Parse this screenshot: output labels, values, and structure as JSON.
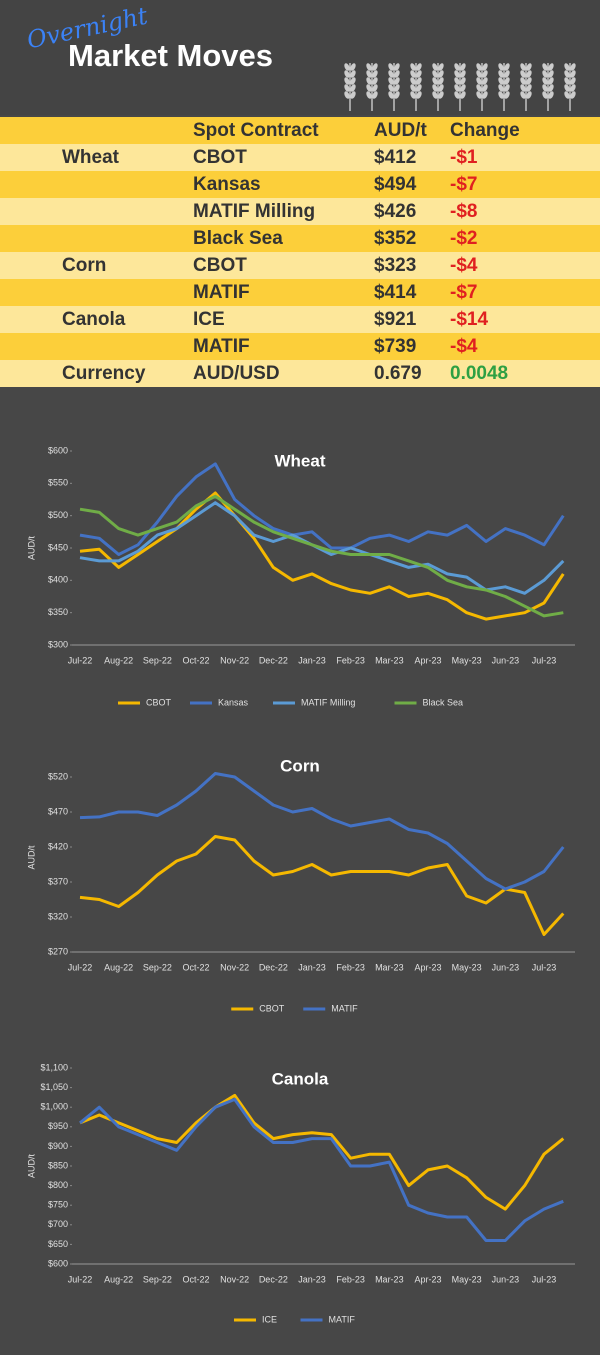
{
  "header": {
    "tag": "Overnight",
    "title": "Market Moves"
  },
  "table": {
    "header": {
      "contract": "Spot Contract",
      "price": "AUD/t",
      "change": "Change"
    },
    "rows": [
      {
        "group": "Wheat",
        "contract": "CBOT",
        "price": "$412",
        "change": "-$1"
      },
      {
        "contract": "Kansas",
        "price": "$494",
        "change": "-$7"
      },
      {
        "contract": "MATIF Milling",
        "price": "$426",
        "change": "-$8"
      },
      {
        "contract": "Black Sea",
        "price": "$352",
        "change": "-$2"
      },
      {
        "group": "Corn",
        "contract": "CBOT",
        "price": "$323",
        "change": "-$4"
      },
      {
        "contract": "MATIF",
        "price": "$414",
        "change": "-$7"
      },
      {
        "group": "Canola",
        "contract": "ICE",
        "price": "$921",
        "change": "-$14"
      },
      {
        "contract": "MATIF",
        "price": "$739",
        "change": "-$4"
      },
      {
        "group": "Currency",
        "contract": "AUD/USD",
        "price": "0.679",
        "change": "0.0048"
      }
    ]
  },
  "chart_data": [
    {
      "type": "line",
      "title": "Wheat",
      "y_label": "AUD/t",
      "grid": false,
      "categories": [
        "Jul-22",
        null,
        "Aug-22",
        null,
        "Sep-22",
        null,
        "Oct-22",
        null,
        "Nov-22",
        null,
        "Dec-22",
        null,
        "Jan-23",
        null,
        "Feb-23",
        null,
        "Mar-23",
        null,
        "Apr-23",
        null,
        "May-23",
        null,
        "Jun-23",
        null,
        "Jul-23",
        null
      ],
      "ylim": [
        300,
        600
      ],
      "yticks": [
        {
          "value": 300,
          "label": "$300"
        },
        {
          "value": 350,
          "label": "$350"
        },
        {
          "value": 400,
          "label": "$400"
        },
        {
          "value": 450,
          "label": "$450"
        },
        {
          "value": 500,
          "label": "$500"
        },
        {
          "value": 550,
          "label": "$550"
        },
        {
          "value": 600,
          "label": "$600"
        }
      ],
      "series": [
        {
          "name": "CBOT",
          "color": "#f5b800",
          "values": [
            445,
            448,
            420,
            440,
            460,
            480,
            510,
            535,
            500,
            465,
            420,
            400,
            410,
            395,
            385,
            380,
            390,
            375,
            380,
            370,
            350,
            340,
            345,
            350,
            365,
            410
          ]
        },
        {
          "name": "Kansas",
          "color": "#4472c4",
          "values": [
            470,
            465,
            440,
            455,
            490,
            530,
            560,
            580,
            525,
            500,
            480,
            470,
            475,
            450,
            450,
            465,
            470,
            460,
            475,
            470,
            485,
            460,
            480,
            470,
            455,
            500
          ]
        },
        {
          "name": "MATIF Milling",
          "color": "#5b9bd5",
          "values": [
            435,
            430,
            430,
            445,
            470,
            480,
            500,
            520,
            500,
            470,
            460,
            470,
            455,
            440,
            450,
            440,
            430,
            420,
            425,
            410,
            405,
            385,
            390,
            380,
            400,
            430
          ]
        },
        {
          "name": "Black Sea",
          "color": "#70ad47",
          "values": [
            510,
            505,
            480,
            470,
            480,
            490,
            515,
            530,
            510,
            490,
            475,
            465,
            455,
            445,
            440,
            440,
            440,
            430,
            420,
            400,
            390,
            385,
            375,
            360,
            345,
            350
          ]
        }
      ]
    },
    {
      "type": "line",
      "title": "Corn",
      "y_label": "AUD/t",
      "grid": false,
      "categories": [
        "Jul-22",
        null,
        "Aug-22",
        null,
        "Sep-22",
        null,
        "Oct-22",
        null,
        "Nov-22",
        null,
        "Dec-22",
        null,
        "Jan-23",
        null,
        "Feb-23",
        null,
        "Mar-23",
        null,
        "Apr-23",
        null,
        "May-23",
        null,
        "Jun-23",
        null,
        "Jul-23",
        null
      ],
      "ylim": [
        270,
        540
      ],
      "yticks": [
        {
          "value": 270,
          "label": "$270"
        },
        {
          "value": 320,
          "label": "$320"
        },
        {
          "value": 370,
          "label": "$370"
        },
        {
          "value": 420,
          "label": "$420"
        },
        {
          "value": 470,
          "label": "$470"
        },
        {
          "value": 520,
          "label": "$520"
        }
      ],
      "series": [
        {
          "name": "CBOT",
          "color": "#f5b800",
          "values": [
            348,
            345,
            335,
            355,
            380,
            400,
            410,
            435,
            430,
            400,
            380,
            385,
            395,
            380,
            385,
            385,
            385,
            380,
            390,
            395,
            350,
            340,
            360,
            355,
            295,
            325
          ]
        },
        {
          "name": "MATIF",
          "color": "#4472c4",
          "values": [
            462,
            463,
            470,
            470,
            465,
            480,
            500,
            525,
            520,
            500,
            480,
            470,
            475,
            460,
            450,
            455,
            460,
            445,
            440,
            425,
            400,
            375,
            360,
            370,
            385,
            420
          ]
        }
      ]
    },
    {
      "type": "line",
      "title": "Canola",
      "y_label": "AUD/t",
      "grid": false,
      "categories": [
        "Jul-22",
        null,
        "Aug-22",
        null,
        "Sep-22",
        null,
        "Oct-22",
        null,
        "Nov-22",
        null,
        "Dec-22",
        null,
        "Jan-23",
        null,
        "Feb-23",
        null,
        "Mar-23",
        null,
        "Apr-23",
        null,
        "May-23",
        null,
        "Jun-23",
        null,
        "Jul-23",
        null
      ],
      "ylim": [
        600,
        1100
      ],
      "yticks": [
        {
          "value": 600,
          "label": "$600"
        },
        {
          "value": 650,
          "label": "$650"
        },
        {
          "value": 700,
          "label": "$700"
        },
        {
          "value": 750,
          "label": "$750"
        },
        {
          "value": 800,
          "label": "$800"
        },
        {
          "value": 850,
          "label": "$850"
        },
        {
          "value": 900,
          "label": "$900"
        },
        {
          "value": 950,
          "label": "$950"
        },
        {
          "value": 1000,
          "label": "$1,000"
        },
        {
          "value": 1050,
          "label": "$1,050"
        },
        {
          "value": 1100,
          "label": "$1,100"
        }
      ],
      "series": [
        {
          "name": "ICE",
          "color": "#f5b800",
          "values": [
            960,
            980,
            960,
            940,
            920,
            910,
            960,
            1000,
            1030,
            960,
            920,
            930,
            935,
            930,
            870,
            880,
            880,
            800,
            840,
            850,
            820,
            770,
            740,
            800,
            880,
            920
          ]
        },
        {
          "name": "MATIF",
          "color": "#4472c4",
          "values": [
            960,
            1000,
            950,
            930,
            910,
            890,
            950,
            1000,
            1020,
            950,
            910,
            910,
            920,
            920,
            850,
            850,
            860,
            750,
            730,
            720,
            720,
            660,
            660,
            710,
            740,
            760
          ]
        }
      ]
    }
  ]
}
